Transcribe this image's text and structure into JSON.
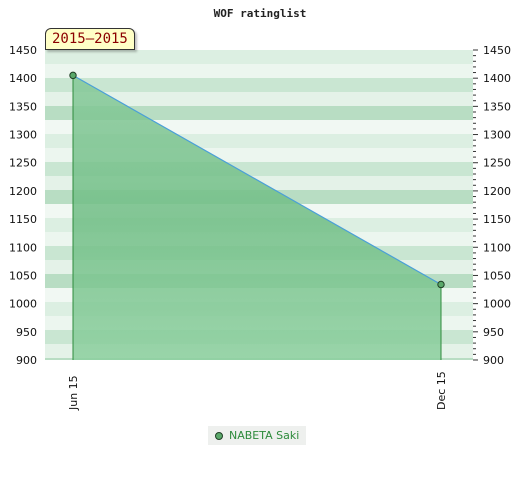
{
  "chart_data": {
    "type": "area",
    "title": "WOF ratinglist",
    "period_label": "2015–2015",
    "x": [
      "Jun 15",
      "Dec 15"
    ],
    "series": [
      {
        "name": "NABETA Saki",
        "values": [
          1405,
          1034
        ]
      }
    ],
    "yticks": [
      900,
      950,
      1000,
      1050,
      1100,
      1150,
      1200,
      1250,
      1300,
      1350,
      1400,
      1450
    ],
    "ylim": [
      900,
      1450
    ],
    "grid": true,
    "legend_position": "bottom",
    "colors": {
      "fill": "#7cc48e",
      "line": "#4a9fd8",
      "stroke_edge": "#2e8b3c",
      "marker": "#5aa86a"
    }
  }
}
